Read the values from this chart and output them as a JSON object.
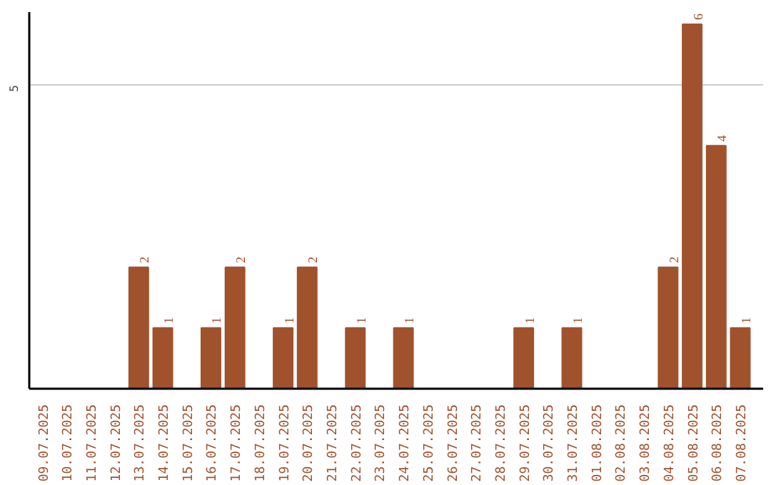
{
  "chart_data": {
    "type": "bar",
    "categories": [
      "09.07.2025",
      "10.07.2025",
      "11.07.2025",
      "12.07.2025",
      "13.07.2025",
      "14.07.2025",
      "15.07.2025",
      "16.07.2025",
      "17.07.2025",
      "18.07.2025",
      "19.07.2025",
      "20.07.2025",
      "21.07.2025",
      "22.07.2025",
      "23.07.2025",
      "24.07.2025",
      "25.07.2025",
      "26.07.2025",
      "27.07.2025",
      "28.07.2025",
      "29.07.2025",
      "30.07.2025",
      "31.07.2025",
      "01.08.2025",
      "02.08.2025",
      "03.08.2025",
      "04.08.2025",
      "05.08.2025",
      "06.08.2025",
      "07.08.2025"
    ],
    "values": [
      0,
      0,
      0,
      0,
      2,
      1,
      0,
      1,
      2,
      0,
      1,
      2,
      0,
      1,
      0,
      1,
      0,
      0,
      0,
      0,
      1,
      0,
      1,
      0,
      0,
      0,
      2,
      6,
      4,
      1
    ],
    "value_labels": [
      null,
      null,
      null,
      null,
      "2",
      "1",
      null,
      "1",
      "2",
      null,
      "1",
      "2",
      null,
      "1",
      null,
      "1",
      null,
      null,
      null,
      null,
      "1",
      null,
      "1",
      null,
      null,
      null,
      "2",
      "6",
      "4",
      "1"
    ],
    "color": "#a0522d",
    "ylim": [
      0,
      6.2
    ],
    "yticks": [
      5
    ],
    "grid": "y"
  }
}
